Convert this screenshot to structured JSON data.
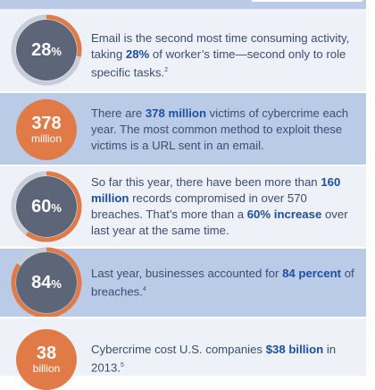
{
  "rows": [
    {
      "stat_num": "28",
      "stat_unit": "%",
      "ring_fraction": 0.28,
      "text_pre": "Email is the second most time consuming activity, taking ",
      "text_hl": "28%",
      "text_post": " of worker’s time—second only to role specific tasks.",
      "sup": "2"
    },
    {
      "stat_num": "378",
      "stat_unit": "million",
      "text_pre": "There are ",
      "text_hl": "378 million",
      "text_post": " victims of cybercrime each year. The most common method to exploit these victims is a URL sent in an email."
    },
    {
      "stat_num": "60",
      "stat_unit": "%",
      "ring_fraction": 0.6,
      "text_pre": "So far this year, there have been more than ",
      "text_hl": "160 million",
      "text_mid": " records compromised in over 570 breaches. That’s more than a ",
      "text_hl2": "60% increase",
      "text_post": " over last year at the same time."
    },
    {
      "stat_num": "84",
      "stat_unit": "%",
      "ring_fraction": 0.84,
      "text_pre": "Last year, businesses accounted for ",
      "text_hl": "84 percent",
      "text_post": " of breaches.",
      "sup": "4"
    },
    {
      "stat_num": "38",
      "stat_unit": "billion",
      "text_pre": "Cybercrime cost U.S. companies ",
      "text_hl": "$38 billion",
      "text_post": " in 2013.",
      "sup": "5"
    }
  ],
  "colors": {
    "band_light": "#eef1f8",
    "band_blue": "#b9cbe6",
    "circle_gray": "#5d6679",
    "ring_gray": "#c7ccd6",
    "accent_orange": "#e07a47",
    "text": "#3a4e73",
    "highlight": "#1d4fa3"
  }
}
